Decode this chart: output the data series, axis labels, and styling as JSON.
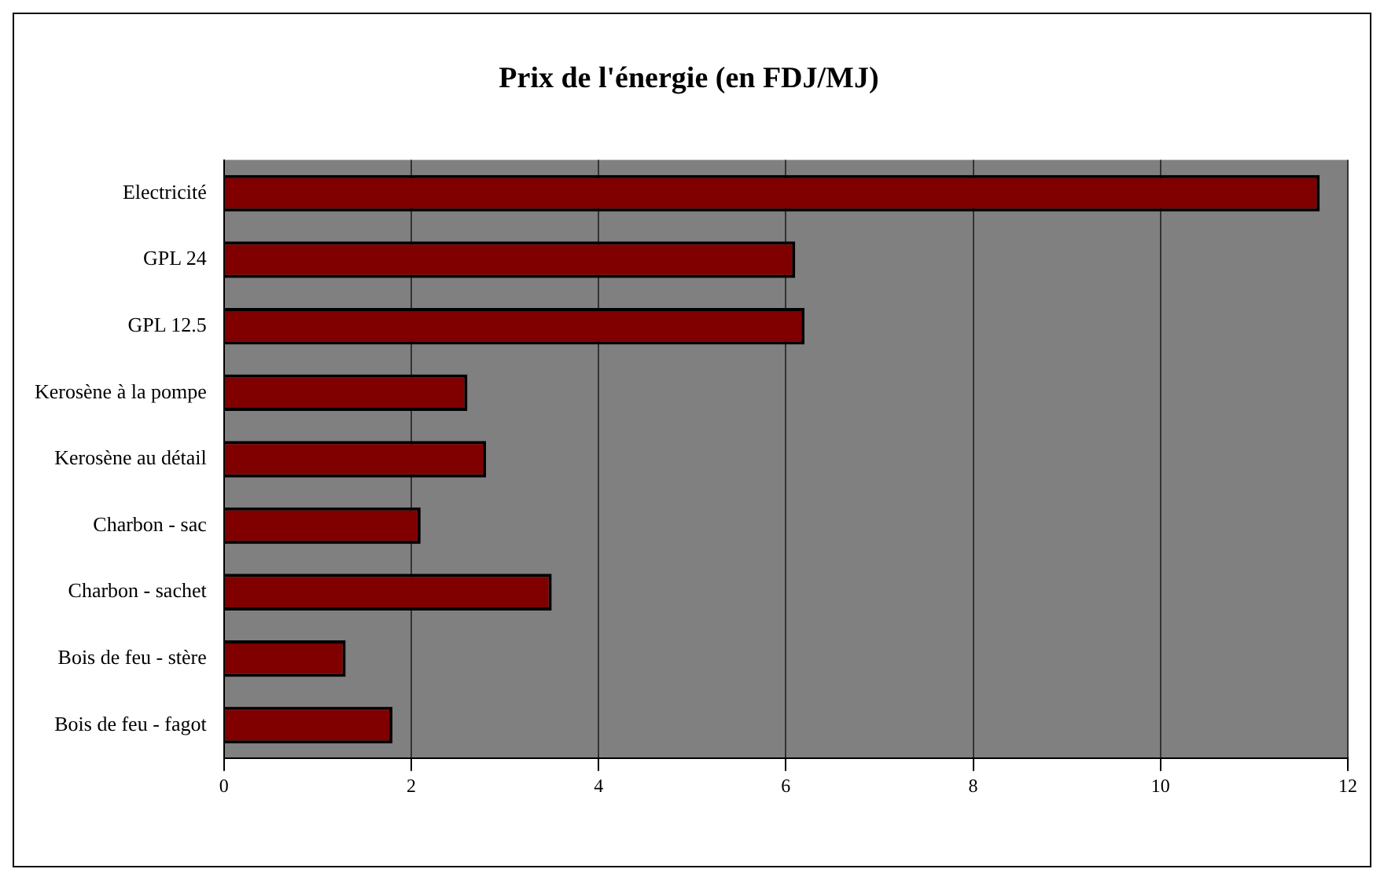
{
  "chart_data": {
    "type": "bar",
    "orientation": "horizontal",
    "title": "Prix de l'énergie (en FDJ/MJ)",
    "categories": [
      "Electricité",
      "GPL 24",
      "GPL 12.5",
      "Kerosène à la pompe",
      "Kerosène au détail",
      "Charbon - sac",
      "Charbon - sachet",
      "Bois de feu - stère",
      "Bois de feu - fagot"
    ],
    "values": [
      11.7,
      6.1,
      6.2,
      2.6,
      2.8,
      2.1,
      3.5,
      1.3,
      1.8
    ],
    "color": "#800000",
    "xlim": [
      0,
      12
    ],
    "xticks": [
      0,
      2,
      4,
      6,
      8,
      10,
      12
    ],
    "grid": "x",
    "legend": false
  }
}
